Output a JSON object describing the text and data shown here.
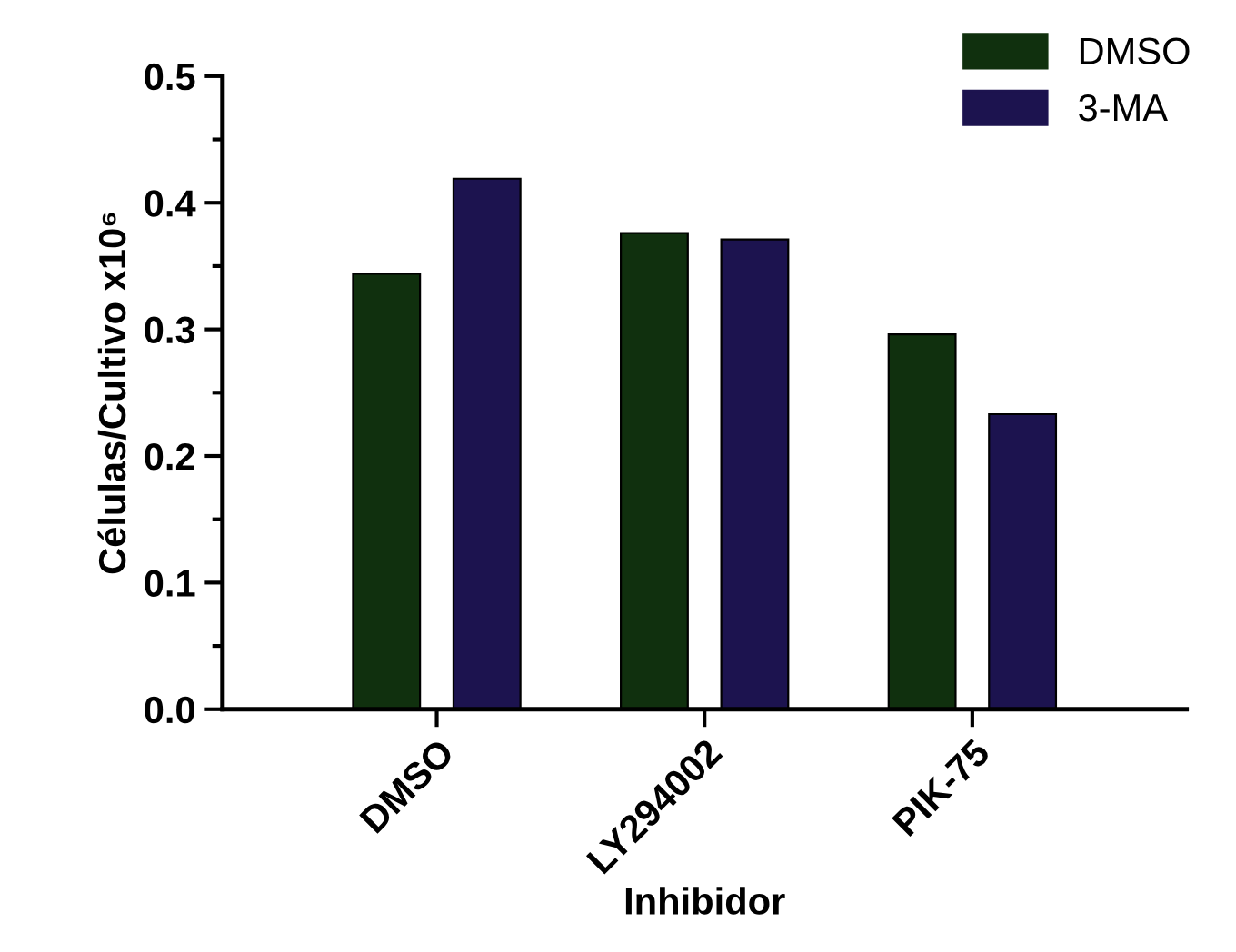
{
  "chart_data": {
    "type": "bar",
    "xlabel": "Inhibidor",
    "ylabel": "Células/Cultivo x10⁶",
    "categories": [
      "DMSO",
      "LY294002",
      "PIK-75"
    ],
    "series": [
      {
        "name": "DMSO",
        "color": "#10300e",
        "values": [
          0.344,
          0.376,
          0.296
        ]
      },
      {
        "name": "3-MA",
        "color": "#1c134f",
        "values": [
          0.419,
          0.371,
          0.233
        ]
      }
    ],
    "ylim": [
      0,
      0.5
    ],
    "yticks": [
      {
        "value": 0,
        "label": "0.0"
      },
      0.1,
      0.2,
      0.3,
      0.4,
      0.5
    ],
    "grid": false,
    "legend": "top right"
  }
}
